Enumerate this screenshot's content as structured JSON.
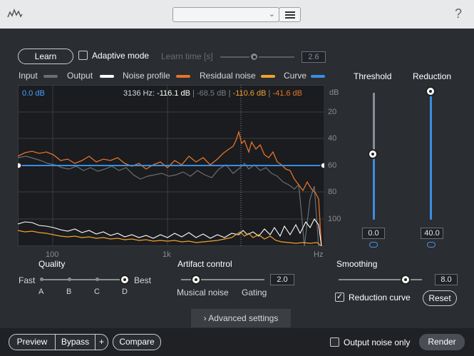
{
  "header": {
    "preset_value": "",
    "help_label": "?"
  },
  "learn": {
    "button_label": "Learn",
    "adaptive_label": "Adaptive mode",
    "learn_time_label": "Learn time [s]",
    "learn_time_value": "2.6",
    "learn_time_fraction": 0.5
  },
  "legend": {
    "input": "Input",
    "output": "Output",
    "noise_profile": "Noise profile",
    "residual": "Residual noise",
    "curve": "Curve",
    "colors": {
      "input": "#6b6e72",
      "output": "#ffffff",
      "noise_profile": "#e5732a",
      "residual": "#f0a030",
      "curve": "#3a8de0"
    }
  },
  "graph": {
    "curve_db": "0.0 dB",
    "readout_hz": "3136 Hz: ",
    "readout_input": "-116.1 dB",
    "sep1": " | ",
    "readout_output": "-68.5 dB",
    "sep2": " | ",
    "readout_residual": "-110.6 dB",
    "sep3": " | ",
    "readout_profile": "-41.6 dB",
    "db_unit": "dB",
    "db_ticks": [
      "20",
      "40",
      "60",
      "80",
      "100"
    ],
    "freq_ticks": [
      "100",
      "1k",
      "Hz"
    ]
  },
  "threshold": {
    "label": "Threshold",
    "value": "0.0",
    "fraction": 0.5
  },
  "reduction": {
    "label": "Reduction",
    "value": "40.0",
    "fraction": 1.0
  },
  "quality": {
    "label": "Quality",
    "fast": "Fast",
    "best": "Best",
    "options": [
      "A",
      "B",
      "C",
      "D"
    ],
    "selected": "D"
  },
  "artifact": {
    "label": "Artifact control",
    "value": "2.0",
    "left_label": "Musical noise",
    "right_label": "Gating",
    "fraction": 0.15
  },
  "smoothing": {
    "label": "Smoothing",
    "value": "8.0",
    "fraction": 0.8,
    "reduction_curve_label": "Reduction curve",
    "reduction_curve_checked": true,
    "reset_label": "Reset"
  },
  "advanced": {
    "label": "Advanced settings"
  },
  "footer": {
    "preview": "Preview",
    "bypass": "Bypass",
    "plus": "+",
    "compare": "Compare",
    "output_noise_only": "Output noise only",
    "render": "Render"
  }
}
